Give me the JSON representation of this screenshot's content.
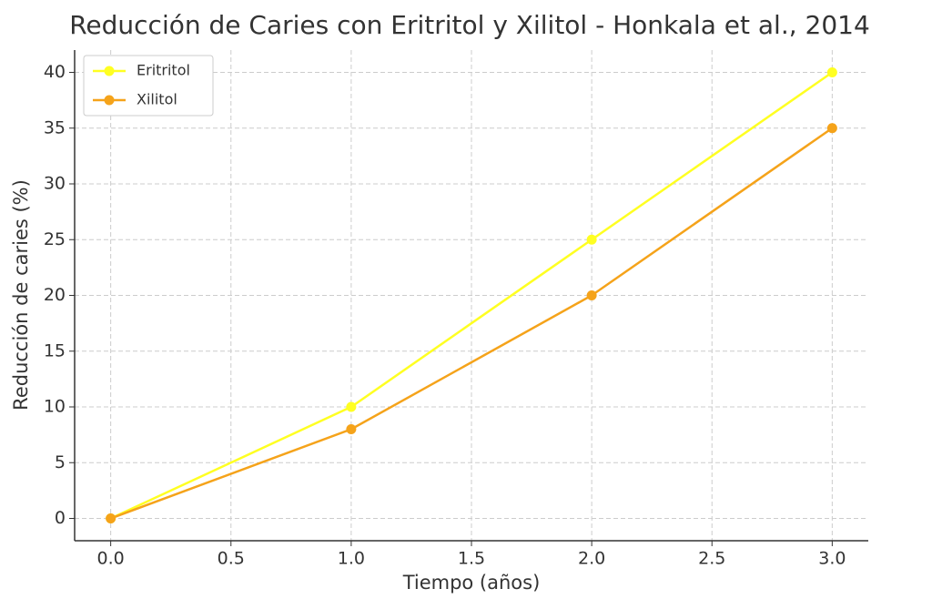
{
  "chart_data": {
    "type": "line",
    "title": "Reducción de Caries con Eritritol y Xilitol - Honkala et al., 2014",
    "x_label": "Tiempo (años)",
    "y_label": "Reducción de caries (%)",
    "x": [
      0,
      1,
      2,
      3
    ],
    "series": [
      {
        "name": "Eritritol",
        "color": "#ffff22",
        "values": [
          0,
          10,
          25,
          40
        ]
      },
      {
        "name": "Xilitol",
        "color": "#f5a31a",
        "values": [
          0,
          8,
          20,
          35
        ]
      }
    ],
    "xlim": [
      -0.15,
      3.15
    ],
    "xticks": [
      {
        "value": 0,
        "label": "0.0"
      },
      {
        "value": 0.5,
        "label": "0.5"
      },
      {
        "value": 1,
        "label": "1.0"
      },
      {
        "value": 1.5,
        "label": "1.5"
      },
      {
        "value": 2,
        "label": "2.0"
      },
      {
        "value": 2.5,
        "label": "2.5"
      },
      {
        "value": 3,
        "label": "3.0"
      }
    ],
    "ylim": [
      -2,
      42
    ],
    "yticks": [
      0,
      5,
      10,
      15,
      20,
      25,
      30,
      35,
      40
    ],
    "grid": true,
    "legend": "upper-left"
  }
}
